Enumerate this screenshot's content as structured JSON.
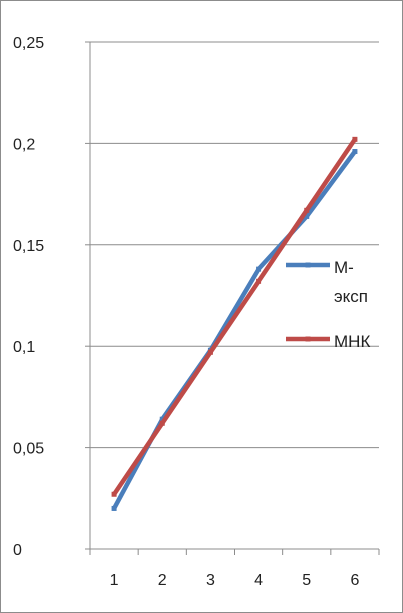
{
  "chart_data": {
    "type": "line",
    "x": [
      1,
      2,
      3,
      4,
      5,
      6
    ],
    "ylim": [
      0,
      0.25
    ],
    "ytick_labels": [
      "0",
      "0,05",
      "0,1",
      "0,15",
      "0,2",
      "0,25"
    ],
    "xtick_labels": [
      "1",
      "2",
      "3",
      "4",
      "5",
      "6"
    ],
    "grid": "horizontal",
    "legend_position": "right",
    "series": [
      {
        "name": "М-эксп",
        "legend_lines": [
          "М-",
          "эксп"
        ],
        "color": "#4a7ebb",
        "values": [
          0.02,
          0.064,
          0.098,
          0.138,
          0.164,
          0.196
        ]
      },
      {
        "name": "МНК",
        "legend_lines": [
          "МНК"
        ],
        "color": "#be4b48",
        "values": [
          0.027,
          0.062,
          0.097,
          0.132,
          0.167,
          0.202
        ]
      }
    ]
  }
}
